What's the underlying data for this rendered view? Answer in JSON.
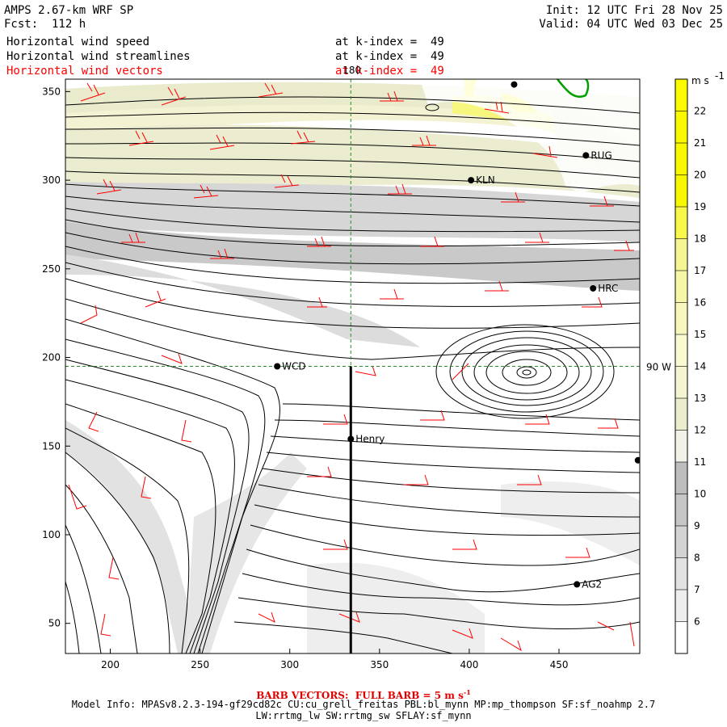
{
  "header": {
    "model_title": "AMPS 2.67-km WRF SP",
    "forecast": "Fcst:  112 h",
    "init": "Init: 12 UTC Fri 28 Nov 25",
    "valid": "Valid: 04 UTC Wed 03 Dec 25"
  },
  "fields": [
    {
      "label": "Horizontal wind speed",
      "level": "at k-index =  49",
      "color": "#000000"
    },
    {
      "label": "Horizontal wind streamlines",
      "level": "at k-index =  49",
      "color": "#000000"
    },
    {
      "label": "Horizontal wind vectors",
      "level": "at k-index =  49",
      "color": "#ff0000"
    }
  ],
  "map": {
    "x_ticks": [
      200,
      250,
      300,
      350,
      400,
      450
    ],
    "x_range": [
      175,
      495
    ],
    "y_ticks": [
      50,
      100,
      150,
      200,
      250,
      300,
      350
    ],
    "y_range": [
      33,
      357
    ],
    "meridian_label": "180",
    "parallel_label": "90 W",
    "meridian_x": 334,
    "parallel_y": 195,
    "transect_x": 334,
    "transect_y_top": 195,
    "stations": [
      {
        "name": "KLN",
        "x": 401,
        "y": 300
      },
      {
        "name": "RUG",
        "x": 465,
        "y": 314
      },
      {
        "name": "HRC",
        "x": 469,
        "y": 239
      },
      {
        "name": "WCD",
        "x": 293,
        "y": 195
      },
      {
        "name": "Henry",
        "x": 334,
        "y": 154
      },
      {
        "name": "AG2",
        "x": 460,
        "y": 72
      },
      {
        "name": "",
        "x": 425,
        "y": 354
      },
      {
        "name": "",
        "x": 494,
        "y": 142
      }
    ]
  },
  "colorbar": {
    "units": "m s",
    "units_exp": "-1",
    "levels": [
      6,
      7,
      8,
      9,
      10,
      11,
      12,
      13,
      14,
      15,
      16,
      17,
      18,
      19,
      20,
      21,
      22
    ],
    "colors": [
      "#ffffff",
      "#eeeeee",
      "#e2e2e2",
      "#d3d3d3",
      "#c6c6c6",
      "#bdbdbd",
      "#f2f2e8",
      "#ececcf",
      "#f5f5d2",
      "#fafad2",
      "#f7f7bd",
      "#f6f6a8",
      "#f5f594",
      "#f7f74c",
      "#f7f700",
      "#f8f800",
      "#f9f900",
      "#fafa00"
    ]
  },
  "footer": {
    "barb_vectors": "BARB VECTORS:  FULL BARB = 5 m s",
    "barb_exp": "-1",
    "model_info": "Model Info: MPASv8.2.3-194-gf29cd82c CU:cu_grell_freitas PBL:bl_mynn MP:mp_thompson SF:sf_noahmp 2.7",
    "physics": "LW:rrtmg_lw SW:rrtmg_sw SFLAY:sf_mynn"
  }
}
